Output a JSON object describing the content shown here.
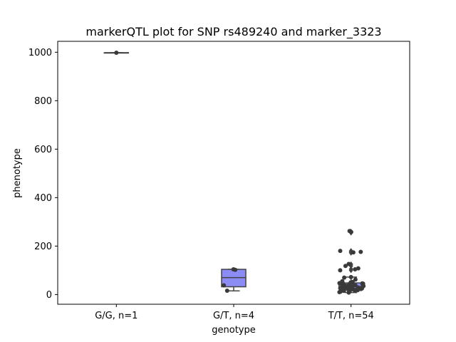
{
  "chart_data": {
    "type": "box",
    "title": "markerQTL plot for SNP rs489240 and marker_3323",
    "xlabel": "genotype",
    "ylabel": "phenotype",
    "ylim": [
      -40,
      1045
    ],
    "yticks": [
      0,
      200,
      400,
      600,
      800,
      1000
    ],
    "grid": false,
    "categories": [
      "G/G, n=1",
      "G/T, n=4",
      "T/T, n=54"
    ],
    "boxes": [
      {
        "q1": 998,
        "median": 998,
        "q3": 998,
        "whisker_low": 998,
        "whisker_high": 998,
        "outliers": []
      },
      {
        "q1": 32,
        "median": 70,
        "q3": 104,
        "whisker_low": 15,
        "whisker_high": 104,
        "outliers": []
      },
      {
        "q1": 25,
        "median": 33,
        "q3": 48,
        "whisker_low": 8,
        "whisker_high": 72,
        "outliers": [
          100,
          105,
          118,
          125,
          172,
          176,
          180,
          255,
          260
        ]
      }
    ],
    "points": [
      {
        "category": 0,
        "values": [
          998
        ]
      },
      {
        "category": 1,
        "values": [
          104,
          102,
          38,
          16
        ]
      },
      {
        "category": 2,
        "values": [
          262,
          258,
          180,
          176,
          174,
          126,
          118,
          108,
          104,
          100,
          72,
          70,
          62,
          55,
          52,
          50,
          48,
          47,
          46,
          45,
          44,
          43,
          42,
          41,
          40,
          39,
          38,
          37,
          36,
          35,
          34,
          33,
          32,
          31,
          30,
          29,
          28,
          27,
          26,
          25,
          24,
          23,
          22,
          21,
          20,
          19,
          18,
          17,
          16,
          15,
          14,
          12,
          10,
          8
        ]
      }
    ],
    "colors": {
      "box_fill": "#8c8cf5",
      "box_edge": "#444444",
      "point": "#3a3a3a",
      "axis": "#000000"
    }
  }
}
